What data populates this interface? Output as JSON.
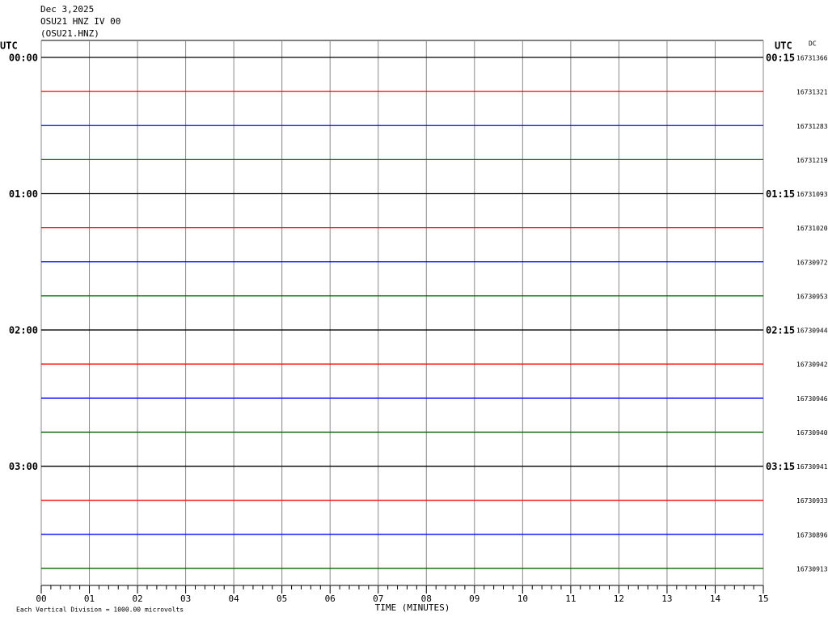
{
  "header": {
    "date": "Dec 3,2025",
    "station": "OSU21 HNZ IV 00",
    "channel": "(OSU21.HNZ)"
  },
  "chart_data": {
    "type": "helicorder",
    "left_axis_label": "UTC",
    "right_axis_label": "UTC",
    "dc_label": "DC",
    "x_label": "TIME (MINUTES)",
    "footnote": "Each Vertical Division = 1000.00 microvolts",
    "xlim": [
      0,
      15
    ],
    "xticks": [
      {
        "value": 0,
        "label": "00"
      },
      {
        "value": 1,
        "label": "01"
      },
      {
        "value": 2,
        "label": "02"
      },
      {
        "value": 3,
        "label": "03"
      },
      {
        "value": 4,
        "label": "04"
      },
      {
        "value": 5,
        "label": "05"
      },
      {
        "value": 6,
        "label": "06"
      },
      {
        "value": 7,
        "label": "07"
      },
      {
        "value": 8,
        "label": "08"
      },
      {
        "value": 9,
        "label": "09"
      },
      {
        "value": 10,
        "label": "10"
      },
      {
        "value": 11,
        "label": "11"
      },
      {
        "value": 12,
        "label": "12"
      },
      {
        "value": 13,
        "label": "13"
      },
      {
        "value": 14,
        "label": "14"
      },
      {
        "value": 15,
        "label": "15"
      }
    ],
    "hour_labels_left": [
      "00:00",
      "01:00",
      "02:00",
      "03:00"
    ],
    "hour_labels_right": [
      "00:15",
      "01:15",
      "02:15",
      "03:15"
    ],
    "row_colors": [
      "#000000",
      "#ff0000",
      "#0000ff",
      "#006400"
    ],
    "dc_offsets": [
      16731366,
      16731321,
      16731283,
      16731219,
      16731093,
      16731020,
      16730972,
      16730953,
      16730944,
      16730942,
      16730946,
      16730940,
      16730941,
      16730933,
      16730896,
      16730913
    ]
  }
}
